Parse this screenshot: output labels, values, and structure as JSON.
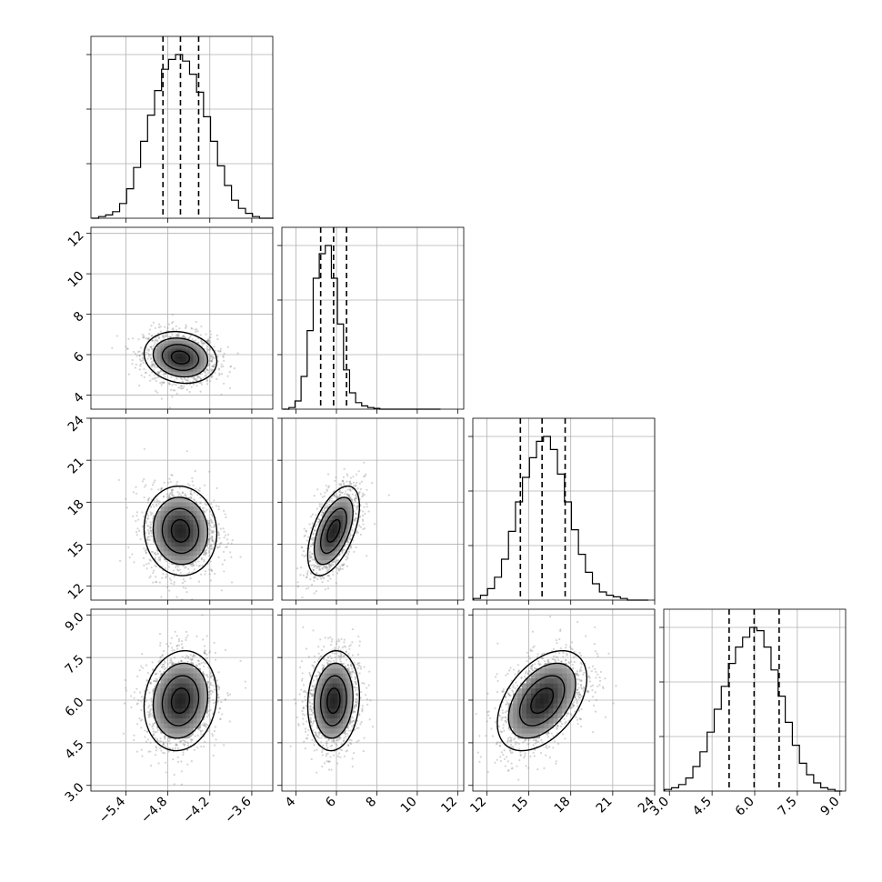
{
  "chart_data": {
    "type": "corner",
    "grid": true,
    "parameters": [
      {
        "range": [
          -5.9,
          -3.3
        ],
        "ticks": [
          -5.4,
          -4.8,
          -4.2,
          -3.6
        ],
        "tick_labels": [
          "−5.4",
          "−4.8",
          "−4.2",
          "−3.6"
        ],
        "quantiles": [
          -4.87,
          -4.62,
          -4.36
        ],
        "hist_centers": [
          -5.84,
          -5.74,
          -5.64,
          -5.54,
          -5.44,
          -5.34,
          -5.24,
          -5.14,
          -5.04,
          -4.94,
          -4.84,
          -4.74,
          -4.64,
          -4.54,
          -4.44,
          -4.34,
          -4.24,
          -4.14,
          -4.04,
          -3.94,
          -3.84,
          -3.74,
          -3.64,
          -3.54,
          -3.44,
          -3.34
        ],
        "hist_counts": [
          0,
          1,
          2,
          4,
          9,
          18,
          31,
          47,
          63,
          78,
          91,
          97,
          100,
          96,
          88,
          77,
          62,
          47,
          32,
          20,
          11,
          6,
          3,
          1,
          0,
          0
        ]
      },
      {
        "range": [
          3.3,
          12.3
        ],
        "ticks": [
          4,
          6,
          8,
          10,
          12
        ],
        "tick_labels": [
          "4",
          "6",
          "8",
          "10",
          "12"
        ],
        "quantiles": [
          5.22,
          5.86,
          6.5
        ],
        "hist_centers": [
          3.5,
          3.8,
          4.1,
          4.4,
          4.7,
          5.0,
          5.3,
          5.6,
          5.9,
          6.2,
          6.5,
          6.8,
          7.1,
          7.4,
          7.7,
          8.0,
          8.3,
          8.6,
          8.9,
          9.2,
          9.5,
          9.8,
          10.1,
          10.4,
          10.7,
          11.0
        ],
        "hist_counts": [
          0,
          1,
          5,
          20,
          48,
          80,
          95,
          100,
          80,
          52,
          24,
          10,
          4,
          2,
          1,
          0.5,
          0,
          0,
          0,
          0,
          0,
          0,
          0,
          0,
          0,
          0
        ]
      },
      {
        "range": [
          11.0,
          24.0
        ],
        "ticks": [
          12,
          15,
          18,
          21,
          24
        ],
        "tick_labels": [
          "12",
          "15",
          "18",
          "21",
          "24"
        ],
        "quantiles": [
          14.4,
          15.95,
          17.6
        ],
        "hist_centers": [
          11.3,
          11.8,
          12.3,
          12.8,
          13.3,
          13.8,
          14.3,
          14.8,
          15.3,
          15.8,
          16.3,
          16.8,
          17.3,
          17.8,
          18.3,
          18.8,
          19.3,
          19.8,
          20.3,
          20.8,
          21.3,
          21.8,
          22.3,
          22.8,
          23.3
        ],
        "hist_counts": [
          1,
          3,
          7,
          14,
          25,
          42,
          60,
          75,
          87,
          97,
          100,
          92,
          77,
          60,
          43,
          28,
          17,
          10,
          5,
          3,
          2,
          1,
          0,
          0,
          0
        ]
      },
      {
        "range": [
          2.8,
          9.2
        ],
        "ticks": [
          3.0,
          4.5,
          6.0,
          7.5,
          9.0
        ],
        "tick_labels": [
          "3.0",
          "4.5",
          "6.0",
          "7.5",
          "9.0"
        ],
        "quantiles": [
          5.1,
          5.98,
          6.86
        ],
        "hist_centers": [
          2.95,
          3.2,
          3.45,
          3.7,
          3.95,
          4.2,
          4.45,
          4.7,
          4.95,
          5.2,
          5.45,
          5.7,
          5.95,
          6.2,
          6.45,
          6.7,
          6.95,
          7.2,
          7.45,
          7.7,
          7.95,
          8.2,
          8.45,
          8.7,
          8.95
        ],
        "hist_counts": [
          1,
          2,
          4,
          8,
          15,
          24,
          36,
          50,
          64,
          78,
          88,
          94,
          100,
          98,
          88,
          74,
          58,
          42,
          28,
          17,
          10,
          5,
          2,
          1,
          0
        ]
      }
    ],
    "correlations": [
      [
        1.0,
        -0.15,
        -0.05,
        0.12
      ],
      [
        -0.15,
        1.0,
        0.55,
        0.1
      ],
      [
        -0.05,
        0.55,
        1.0,
        0.45
      ],
      [
        0.12,
        0.1,
        0.45,
        1.0
      ]
    ],
    "sigmas": [
      0.26,
      0.64,
      1.6,
      0.88
    ],
    "centers": [
      -4.62,
      5.86,
      15.95,
      5.98
    ],
    "contour_levels": [
      0.5,
      1.0,
      1.5,
      2.0
    ]
  }
}
